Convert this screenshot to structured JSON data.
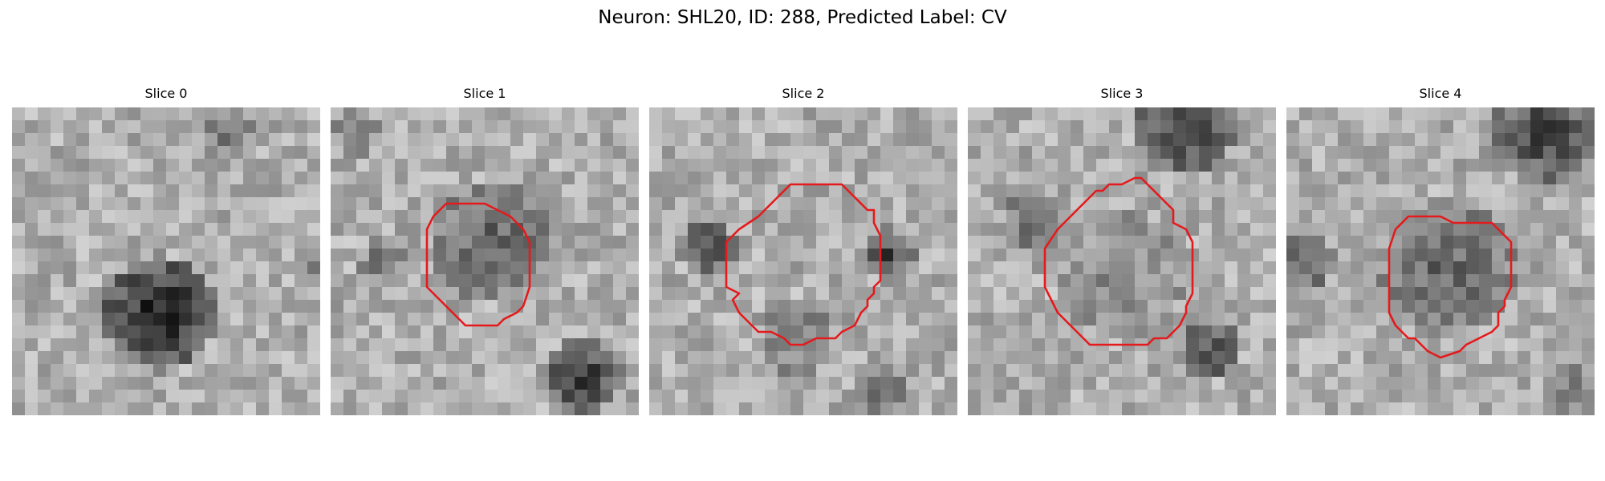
{
  "figure": {
    "suptitle": "Neuron: SHL20, ID: 288, Predicted Label: CV"
  },
  "panels": [
    {
      "title": "Slice 0",
      "has_contour": false
    },
    {
      "title": "Slice 1",
      "has_contour": true
    },
    {
      "title": "Slice 2",
      "has_contour": true
    },
    {
      "title": "Slice 3",
      "has_contour": true
    },
    {
      "title": "Slice 4",
      "has_contour": true
    }
  ],
  "colors": {
    "contour": "#e41a1c",
    "background": "#ffffff"
  },
  "colormap": "gray"
}
